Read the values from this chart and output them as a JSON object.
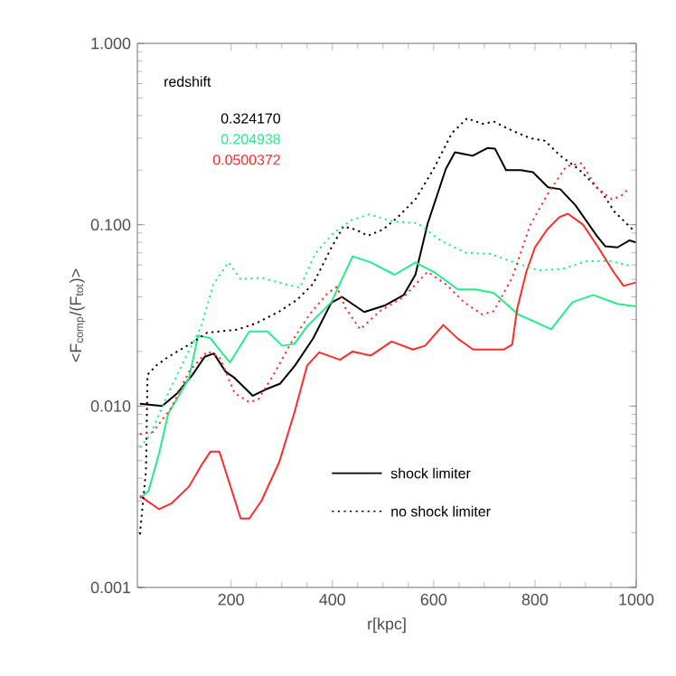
{
  "chart_data": {
    "type": "line",
    "xlabel": "r[kpc]",
    "ylabel": "<F$_{comp}$/(F$_{tot}$)>",
    "legend_title": "redshift",
    "legend": "top left",
    "log": "y",
    "grid": false,
    "xlim": [
      15,
      1000
    ],
    "xticks": [
      200,
      400,
      600,
      800,
      1000
    ],
    "ylim": [
      0.001,
      1
    ],
    "yticks": [
      {
        "value": 0.001,
        "label": "0.001"
      },
      {
        "value": 0.01,
        "label": "0.010"
      },
      {
        "value": 0.1,
        "label": "0.100"
      },
      {
        "value": 1,
        "label": "1.000"
      }
    ],
    "annotations": [
      "shock limiter",
      "no shock limiter"
    ],
    "series": [
      {
        "name": "0.324170",
        "color": "#000000",
        "line_style": "solid",
        "x": [
          20,
          64,
          94,
          124,
          148,
          166,
          189,
          207,
          243,
          267,
          297,
          326,
          362,
          398,
          419,
          463,
          505,
          541,
          564,
          588,
          624,
          642,
          677,
          707,
          721,
          743,
          772,
          796,
          826,
          850,
          880,
          922,
          939,
          963,
          987,
          999
        ],
        "values": [
          0.0103,
          0.01,
          0.0118,
          0.0149,
          0.0187,
          0.0195,
          0.0155,
          0.0143,
          0.0114,
          0.0123,
          0.0133,
          0.0167,
          0.0236,
          0.0372,
          0.04,
          0.033,
          0.036,
          0.041,
          0.053,
          0.101,
          0.203,
          0.251,
          0.24,
          0.265,
          0.263,
          0.2,
          0.2,
          0.195,
          0.161,
          0.157,
          0.128,
          0.087,
          0.076,
          0.075,
          0.082,
          0.08
        ]
      },
      {
        "name": "0.204938",
        "color": "#22ee88",
        "line_style": "solid",
        "x": [
          20,
          37,
          58,
          76,
          100,
          117,
          135,
          159,
          183,
          198,
          236,
          272,
          301,
          325,
          350,
          398,
          440,
          476,
          523,
          564,
          600,
          648,
          683,
          719,
          767,
          802,
          832,
          874,
          915,
          963,
          999
        ],
        "values": [
          0.0031,
          0.0034,
          0.0055,
          0.0091,
          0.0118,
          0.0143,
          0.0245,
          0.0237,
          0.0195,
          0.0174,
          0.0258,
          0.0258,
          0.0215,
          0.022,
          0.0275,
          0.0374,
          0.067,
          0.062,
          0.053,
          0.062,
          0.055,
          0.044,
          0.044,
          0.042,
          0.032,
          0.029,
          0.0265,
          0.0374,
          0.041,
          0.0366,
          0.0355
        ]
      },
      {
        "name": "0.0500372",
        "color": "#ff2a2a",
        "line_style": "solid",
        "x": [
          20,
          58,
          82,
          117,
          141,
          159,
          177,
          219,
          236,
          260,
          295,
          326,
          350,
          374,
          415,
          440,
          476,
          517,
          559,
          583,
          619,
          648,
          678,
          714,
          738,
          755,
          765,
          783,
          800,
          824,
          848,
          865,
          895,
          925,
          955,
          975,
          999
        ],
        "values": [
          0.0032,
          0.0027,
          0.0029,
          0.0036,
          0.0047,
          0.0056,
          0.0056,
          0.0024,
          0.0024,
          0.003,
          0.0049,
          0.0094,
          0.0167,
          0.0198,
          0.018,
          0.02,
          0.019,
          0.0227,
          0.0205,
          0.0215,
          0.028,
          0.0235,
          0.0205,
          0.0205,
          0.0205,
          0.0218,
          0.0345,
          0.055,
          0.075,
          0.094,
          0.11,
          0.115,
          0.1,
          0.075,
          0.055,
          0.046,
          0.048
        ]
      },
      {
        "color": "#000000",
        "line_style": "dotted",
        "x": [
          20,
          32,
          35,
          52,
          76,
          117,
          153,
          212,
          248,
          295,
          331,
          362,
          398,
          422,
          446,
          470,
          500,
          529,
          564,
          600,
          636,
          666,
          696,
          719,
          755,
          791,
          820,
          850,
          886,
          933,
          957,
          993
        ],
        "values": [
          0.00196,
          0.0044,
          0.0149,
          0.0167,
          0.0187,
          0.0218,
          0.0254,
          0.0264,
          0.0285,
          0.0332,
          0.0387,
          0.0472,
          0.0747,
          0.098,
          0.094,
          0.087,
          0.094,
          0.11,
          0.138,
          0.203,
          0.32,
          0.386,
          0.36,
          0.37,
          0.33,
          0.3,
          0.29,
          0.24,
          0.203,
          0.15,
          0.118,
          0.094
        ]
      },
      {
        "color": "#22ee88",
        "line_style": "dotted",
        "x": [
          20,
          40,
          76,
          117,
          141,
          165,
          195,
          219,
          260,
          307,
          336,
          366,
          402,
          438,
          473,
          521,
          568,
          616,
          664,
          712,
          759,
          807,
          854,
          902,
          950,
          992
        ],
        "values": [
          0.0059,
          0.0069,
          0.0118,
          0.0202,
          0.0275,
          0.047,
          0.062,
          0.05,
          0.051,
          0.047,
          0.045,
          0.069,
          0.09,
          0.106,
          0.114,
          0.104,
          0.102,
          0.081,
          0.07,
          0.069,
          0.062,
          0.056,
          0.057,
          0.063,
          0.063,
          0.059
        ]
      },
      {
        "color": "#ff2a2a",
        "line_style": "dotted",
        "x": [
          20,
          46,
          82,
          117,
          153,
          177,
          207,
          236,
          254,
          284,
          320,
          355,
          391,
          409,
          426,
          455,
          494,
          541,
          588,
          624,
          660,
          696,
          719,
          755,
          791,
          826,
          862,
          892,
          922,
          952,
          969,
          987
        ],
        "values": [
          0.007,
          0.0072,
          0.0098,
          0.0155,
          0.02,
          0.0187,
          0.0118,
          0.0105,
          0.0109,
          0.0149,
          0.0227,
          0.032,
          0.042,
          0.0454,
          0.0347,
          0.0265,
          0.0334,
          0.04,
          0.055,
          0.047,
          0.0374,
          0.032,
          0.0334,
          0.051,
          0.1,
          0.149,
          0.21,
          0.218,
          0.16,
          0.138,
          0.143,
          0.16
        ]
      }
    ]
  }
}
